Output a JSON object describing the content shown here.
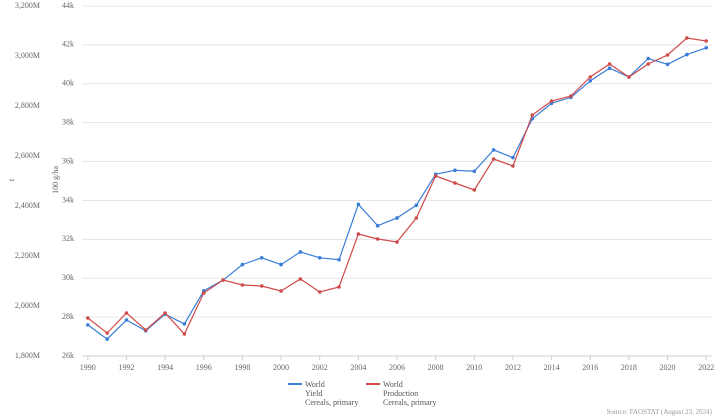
{
  "chart_data": {
    "type": "line",
    "ylabel": "t",
    "y2label": "100 g/ha",
    "source": "Source: FAOSTAT (August 23, 2024)",
    "x": [
      1990,
      1991,
      1992,
      1993,
      1994,
      1995,
      1996,
      1997,
      1998,
      1999,
      2000,
      2001,
      2002,
      2003,
      2004,
      2005,
      2006,
      2007,
      2008,
      2009,
      2010,
      2011,
      2012,
      2013,
      2014,
      2015,
      2016,
      2017,
      2018,
      2019,
      2020,
      2021,
      2022
    ],
    "xlim": [
      1989.7,
      2022.3
    ],
    "xticks": [
      1990,
      1992,
      1994,
      1996,
      1998,
      2000,
      2002,
      2004,
      2006,
      2008,
      2010,
      2012,
      2014,
      2016,
      2018,
      2020,
      2022
    ],
    "ylim": [
      1800000000,
      3200000000
    ],
    "yticks": [
      {
        "value": 1800000000,
        "label": "1,800M"
      },
      {
        "value": 2000000000,
        "label": "2,000M"
      },
      {
        "value": 2200000000,
        "label": "2,200M"
      },
      {
        "value": 2400000000,
        "label": "2,400M"
      },
      {
        "value": 2600000000,
        "label": "2,600M"
      },
      {
        "value": 2800000000,
        "label": "2,800M"
      },
      {
        "value": 3000000000,
        "label": "3,000M"
      },
      {
        "value": 3200000000,
        "label": "3,200M"
      }
    ],
    "y2lim": [
      26000,
      44000
    ],
    "y2ticks": [
      {
        "value": 26000,
        "label": "26k"
      },
      {
        "value": 28000,
        "label": "28k"
      },
      {
        "value": 30000,
        "label": "30k"
      },
      {
        "value": 32000,
        "label": "32k"
      },
      {
        "value": 34000,
        "label": "34k"
      },
      {
        "value": 36000,
        "label": "36k"
      },
      {
        "value": 38000,
        "label": "38k"
      },
      {
        "value": 40000,
        "label": "40k"
      },
      {
        "value": 42000,
        "label": "42k"
      },
      {
        "value": 44000,
        "label": "44k"
      }
    ],
    "grid": true,
    "series": [
      {
        "name": "World\nYield\nCereals, primary",
        "color": "#3b7dd8",
        "axis": "y2",
        "values": [
          27600,
          26870,
          27850,
          27300,
          28150,
          27650,
          29350,
          29900,
          30700,
          31050,
          30700,
          31350,
          31050,
          30950,
          33800,
          32700,
          33100,
          33750,
          35350,
          35550,
          35500,
          36600,
          36200,
          38200,
          39000,
          39300,
          40150,
          40800,
          40350,
          41300,
          41000,
          41500,
          41850
        ]
      },
      {
        "name": "World\nProduction\nCereals, primary",
        "color": "#d04a4a",
        "values": [
          1952000000,
          1892000000,
          1972000000,
          1904000000,
          1972000000,
          1888000000,
          2052000000,
          2104000000,
          2084000000,
          2080000000,
          2060000000,
          2108000000,
          2056000000,
          2076000000,
          2288000000,
          2268000000,
          2256000000,
          2352000000,
          2520000000,
          2492000000,
          2464000000,
          2588000000,
          2560000000,
          2764000000,
          2820000000,
          2840000000,
          2916000000,
          2968000000,
          2916000000,
          2968000000,
          3004000000,
          3072000000,
          3060000000
        ]
      }
    ]
  }
}
